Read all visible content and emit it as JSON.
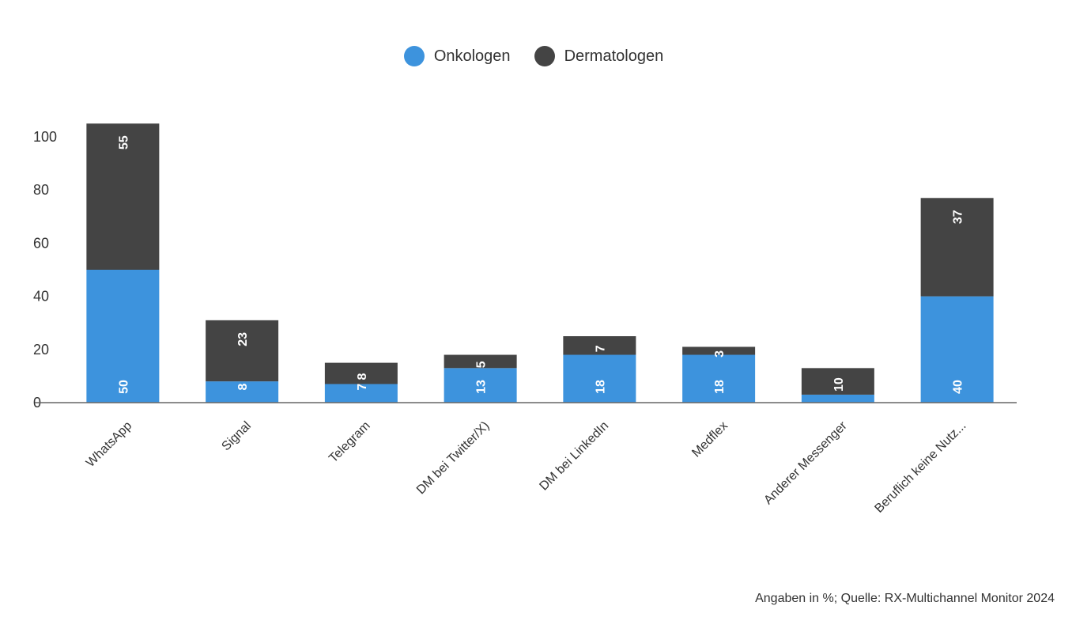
{
  "chart_data": {
    "type": "bar",
    "stacked": true,
    "categories": [
      "WhatsApp",
      "Signal",
      "Telegram",
      "DM bei Twitter/X)",
      "DM bei LinkedIn",
      "Medflex",
      "Anderer Messenger",
      "Beruflich keine Nutz..."
    ],
    "series": [
      {
        "name": "Onkologen",
        "color": "#3d93dd",
        "values": [
          50,
          8,
          7,
          13,
          18,
          18,
          3,
          40
        ]
      },
      {
        "name": "Dermatologen",
        "color": "#444444",
        "values": [
          55,
          23,
          8,
          5,
          7,
          3,
          10,
          37
        ]
      }
    ],
    "ylim": [
      0,
      100
    ],
    "yticks": [
      0,
      20,
      40,
      60,
      80,
      100
    ],
    "xlabel": "",
    "ylabel": "",
    "legend": "top-center",
    "grid": false
  },
  "footer": {
    "source": "Angaben in %; Quelle: RX-Multichannel Monitor 2024"
  }
}
